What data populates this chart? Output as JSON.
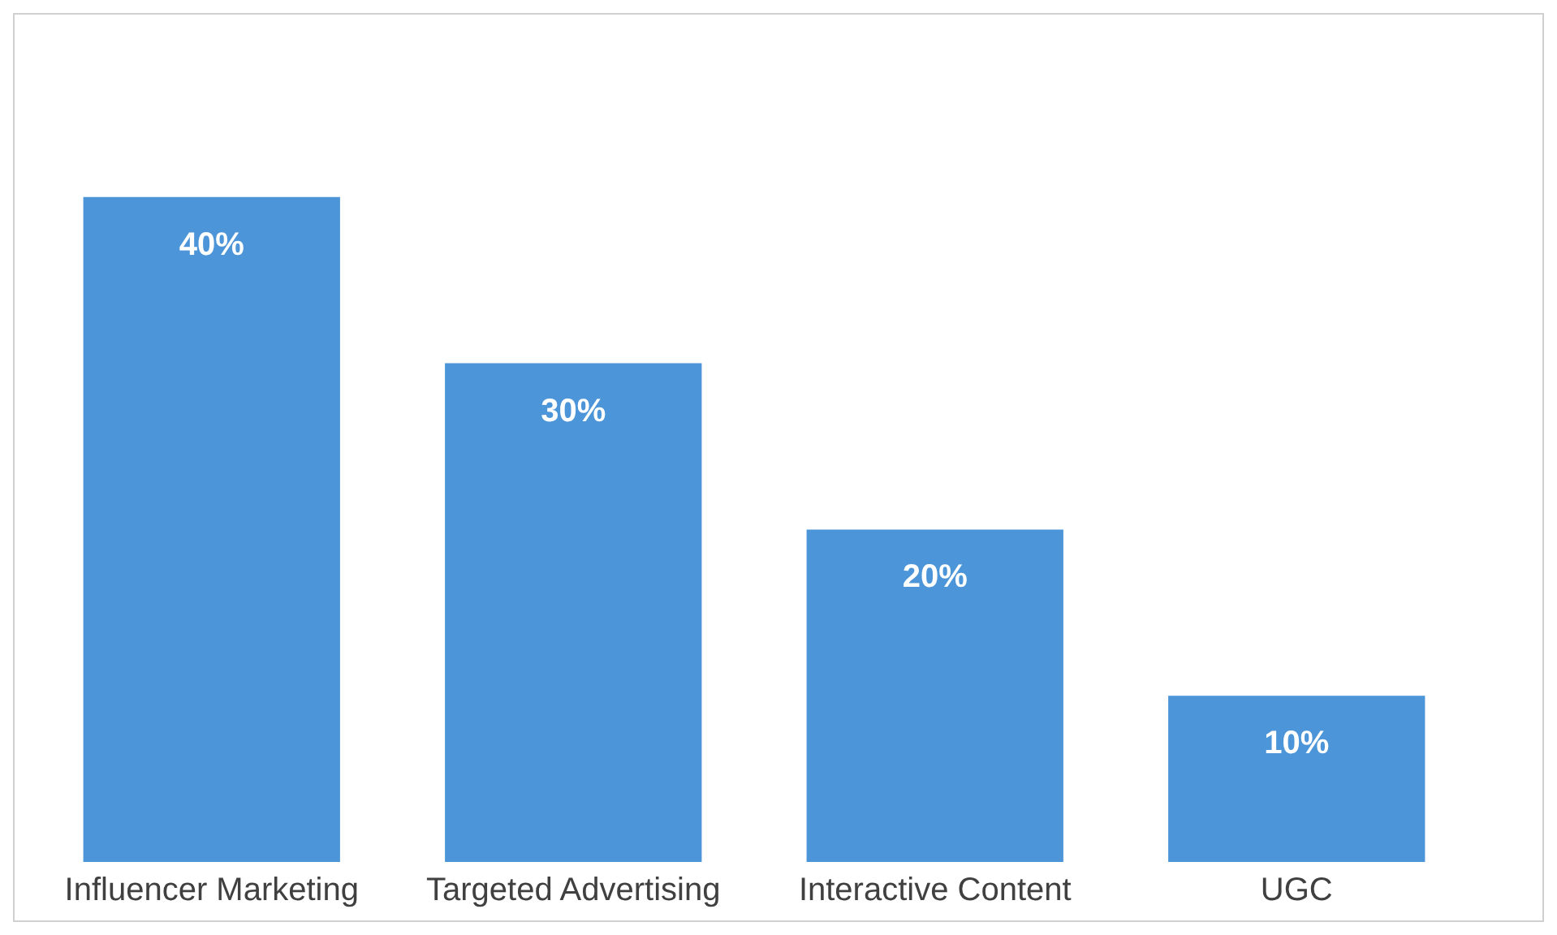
{
  "chart_data": {
    "type": "bar",
    "categories": [
      "Influencer Marketing",
      "Targeted Advertising",
      "Interactive Content",
      "UGC"
    ],
    "values": [
      40,
      30,
      20,
      10
    ],
    "color": "#4b95d8",
    "value_labels": [
      "40%",
      "30%",
      "20%",
      "10%"
    ],
    "grid": false,
    "legend": false
  }
}
